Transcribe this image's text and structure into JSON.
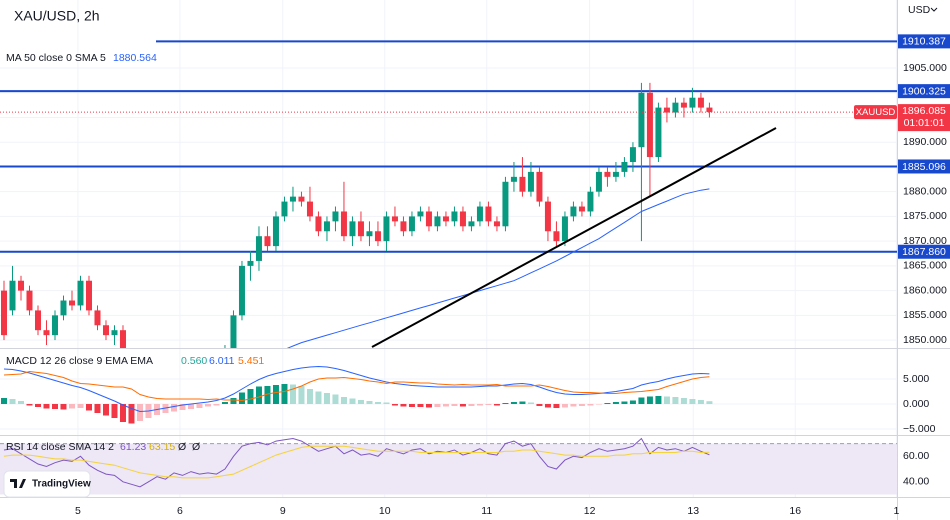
{
  "chart_data": {
    "type": "candlestick",
    "title": "XAU/USD, 2h",
    "currency": "USD",
    "symbol": "XAUUSD",
    "countdown": "01:01:01",
    "categories": [
      null,
      null,
      null,
      null,
      null,
      null,
      null,
      null,
      null,
      null,
      null,
      null,
      null,
      null,
      null,
      null,
      null,
      null,
      null,
      null,
      null,
      null,
      null,
      null,
      null,
      null,
      null,
      null,
      null,
      null,
      null,
      null,
      null,
      null,
      null,
      null,
      null,
      null,
      null,
      null,
      null,
      null,
      null,
      null,
      null,
      null,
      null,
      null,
      null,
      null,
      null,
      null,
      null,
      null,
      null,
      null,
      null,
      null,
      null,
      null,
      null,
      null,
      null,
      null,
      null,
      null,
      null,
      null,
      null,
      null,
      null,
      null,
      null,
      null,
      null,
      null,
      null,
      null,
      null,
      null,
      null,
      null,
      null,
      null
    ],
    "open": [
      1860,
      1856,
      1862,
      1860,
      1856,
      1852,
      1851,
      1855,
      1858,
      1857,
      1862,
      1856,
      1853,
      1851,
      1852,
      1847,
      1843,
      1840,
      1838,
      1840,
      1842,
      1841,
      1844,
      1843,
      1845,
      1844,
      1846,
      1848,
      1855,
      1865,
      1866,
      1871,
      1869,
      1875,
      1878,
      1879,
      1878,
      1875,
      1872,
      1874,
      1876,
      1871,
      1874,
      1871,
      1872,
      1870,
      1875,
      1874,
      1872,
      1875,
      1876,
      1873,
      1875,
      1874,
      1876,
      1873,
      1874,
      1877,
      1874,
      1873,
      1882,
      1883,
      1880,
      1884,
      1878,
      1872,
      1870,
      1875,
      1877,
      1876,
      1880,
      1884,
      1883,
      1884,
      1886,
      1889,
      1900,
      1887,
      1897,
      1896,
      1898,
      1897,
      1899,
      1897
    ],
    "high": [
      1862,
      1865,
      1863,
      1861,
      1857,
      1854,
      1856,
      1859,
      1860,
      1863,
      1863,
      1857,
      1854,
      1853,
      1853,
      1848,
      1845,
      1842,
      1841,
      1843,
      1844,
      1845,
      1846,
      1846,
      1847,
      1847,
      1849,
      1856,
      1866,
      1868,
      1873,
      1873,
      1876,
      1879,
      1881,
      1880,
      1881,
      1876,
      1875,
      1877,
      1882,
      1875,
      1876,
      1874,
      1874,
      1876,
      1877,
      1875,
      1876,
      1877,
      1877,
      1876,
      1876,
      1877,
      1877,
      1875,
      1878,
      1878,
      1875,
      1883,
      1886,
      1887,
      1886,
      1885,
      1879,
      1874,
      1876,
      1878,
      1878,
      1881,
      1885,
      1885,
      1886,
      1887,
      1890,
      1902,
      1902,
      1898,
      1899,
      1899,
      1899,
      1901,
      1900,
      1898
    ],
    "low": [
      1850,
      1855,
      1858,
      1855,
      1851,
      1849,
      1850,
      1854,
      1856,
      1856,
      1855,
      1852,
      1850,
      1849,
      1846,
      1842,
      1838,
      1836,
      1837,
      1839,
      1840,
      1840,
      1842,
      1842,
      1843,
      1843,
      1845,
      1847,
      1854,
      1862,
      1864,
      1868,
      1868,
      1874,
      1876,
      1877,
      1874,
      1871,
      1870,
      1872,
      1870,
      1869,
      1870,
      1869,
      1869,
      1868,
      1873,
      1871,
      1871,
      1874,
      1872,
      1872,
      1873,
      1873,
      1872,
      1872,
      1873,
      1873,
      1872,
      1872,
      1880,
      1879,
      1879,
      1877,
      1870,
      1869,
      1869,
      1874,
      1875,
      1875,
      1879,
      1881,
      1882,
      1883,
      1884,
      1870,
      1879,
      1886,
      1894,
      1895,
      1895,
      1896,
      1896,
      1895
    ],
    "close": [
      1851,
      1862,
      1860,
      1856,
      1852,
      1851,
      1855,
      1858,
      1857,
      1862,
      1856,
      1853,
      1851,
      1852,
      1847,
      1843,
      1840,
      1838,
      1840,
      1842,
      1841,
      1844,
      1843,
      1845,
      1844,
      1846,
      1848,
      1855,
      1865,
      1866,
      1871,
      1869,
      1875,
      1878,
      1879,
      1878,
      1875,
      1872,
      1874,
      1876,
      1871,
      1874,
      1871,
      1872,
      1870,
      1875,
      1874,
      1872,
      1875,
      1876,
      1873,
      1875,
      1874,
      1876,
      1873,
      1874,
      1877,
      1874,
      1873,
      1882,
      1883,
      1880,
      1884,
      1878,
      1872,
      1870,
      1875,
      1877,
      1876,
      1880,
      1884,
      1883,
      1884,
      1886,
      1889,
      1900,
      1887,
      1897,
      1896,
      1898,
      1897,
      1899,
      1897,
      1896.085
    ],
    "up_color": "#089981",
    "down_color": "#f23645",
    "ma": {
      "name": "MA 50 close 0 SMA 5",
      "color": "#2962ff",
      "values": [
        null,
        null,
        null,
        null,
        null,
        null,
        null,
        null,
        null,
        null,
        null,
        null,
        null,
        null,
        null,
        null,
        null,
        null,
        null,
        null,
        null,
        null,
        null,
        null,
        null,
        null,
        null,
        null,
        null,
        null,
        1846,
        1846.7,
        1847.4,
        1848.1,
        1848.8,
        1849.5,
        1850,
        1850.5,
        1851,
        1851.5,
        1852,
        1852.5,
        1853,
        1853.5,
        1854,
        1854.5,
        1855,
        1855.5,
        1856,
        1856.5,
        1857,
        1857.5,
        1858,
        1858.5,
        1859,
        1859.5,
        1860,
        1860.5,
        1861,
        1861.5,
        1862,
        1862.8,
        1863.6,
        1864.4,
        1865.2,
        1866,
        1866.9,
        1867.8,
        1868.7,
        1869.6,
        1870.5,
        1871.6,
        1872.7,
        1873.8,
        1874.9,
        1876,
        1876.7,
        1877.4,
        1878.1,
        1878.8,
        1879.5,
        1879.9,
        1880.3,
        1880.564
      ]
    },
    "levels": [
      1910.387,
      1900.325,
      1885.096,
      {
        "value": 1867.86,
        "label": "1867.860"
      }
    ],
    "level_color": "#1848cc",
    "xlim": [
      -0.47,
      105.07
    ],
    "xticks": [
      {
        "value": 8.7,
        "label": "5"
      },
      {
        "value": 20.7,
        "label": "6"
      },
      {
        "value": 32.8,
        "label": "9"
      },
      {
        "value": 44.8,
        "label": "10"
      },
      {
        "value": 56.8,
        "label": "11"
      },
      {
        "value": 68.9,
        "label": "12"
      },
      {
        "value": 81.1,
        "label": "13"
      },
      {
        "value": 93.1,
        "label": "16"
      },
      {
        "value": 105,
        "label": "1"
      }
    ],
    "ylim": [
      1848.4,
      1918.75
    ],
    "yticks": [
      {
        "value": 1850,
        "label": "1850.000"
      },
      {
        "value": 1855,
        "label": "1855.000"
      },
      {
        "value": 1860,
        "label": "1860.000"
      },
      {
        "value": 1865,
        "label": "1865.000"
      },
      {
        "value": 1870,
        "label": "1870.000"
      },
      {
        "value": 1875,
        "label": "1875.000"
      },
      {
        "value": 1880,
        "label": "1880.000"
      },
      {
        "value": 1885,
        "label": "1885.000"
      },
      {
        "value": 1890,
        "label": "1890.000"
      },
      {
        "value": 1895,
        "label": "1895.000"
      },
      {
        "value": 1900,
        "label": "1900.000"
      },
      {
        "value": 1905,
        "label": "1905.000"
      }
    ],
    "grid": true,
    "macd": {
      "legend": "MACD 12 26 close 9 EMA EMA",
      "legend_values": [
        "0.560",
        "6.011",
        "5.451"
      ],
      "ylim": [
        -6,
        11
      ],
      "yticks": [
        {
          "value": 5,
          "label": "5.000"
        },
        {
          "value": 0,
          "label": "0.000"
        },
        {
          "value": -5,
          "label": "−5.000"
        }
      ],
      "hist_colors": [
        "#089981",
        "#acdcd4",
        "#f23645",
        "#fbb8be"
      ],
      "hist": [
        1.2,
        1.0,
        0.6,
        -0.3,
        -0.6,
        -0.9,
        -1.0,
        -1.1,
        -0.9,
        -0.8,
        -1.3,
        -1.8,
        -2.3,
        -2.8,
        -3.6,
        -3.9,
        -3.4,
        -2.8,
        -2.2,
        -1.8,
        -1.5,
        -1.2,
        -1.0,
        -0.8,
        -0.5,
        -0.3,
        0.4,
        1.2,
        2.3,
        3.0,
        3.5,
        3.6,
        3.8,
        4.0,
        3.9,
        3.6,
        3.0,
        2.5,
        2.2,
        1.9,
        1.4,
        1.1,
        0.8,
        0.6,
        0.4,
        0.3,
        -0.3,
        -0.5,
        -0.6,
        -0.6,
        -0.7,
        -0.6,
        -0.5,
        -0.4,
        -0.5,
        -0.4,
        -0.3,
        -0.2,
        -0.3,
        0.2,
        0.4,
        0.5,
        0.3,
        -0.4,
        -0.7,
        -0.8,
        -0.7,
        -0.5,
        -0.4,
        -0.3,
        -0.1,
        0.2,
        0.4,
        0.5,
        0.7,
        1.3,
        1.5,
        1.6,
        1.5,
        1.4,
        1.2,
        1.0,
        0.8,
        0.56
      ],
      "series": [
        {
          "name": "MACD",
          "color": "#2962ff",
          "values": [
            7.0,
            6.9,
            6.6,
            6.2,
            5.7,
            5.2,
            4.7,
            4.2,
            3.7,
            3.3,
            2.7,
            2.0,
            1.3,
            0.6,
            -0.2,
            -0.9,
            -1.5,
            -1.4,
            -1.1,
            -0.8,
            -0.5,
            -0.2,
            0.0,
            0.2,
            0.4,
            0.7,
            1.2,
            2.0,
            3.0,
            4.0,
            4.9,
            5.6,
            6.1,
            6.5,
            6.9,
            7.2,
            7.4,
            7.5,
            7.4,
            7.1,
            6.7,
            6.2,
            5.7,
            5.2,
            4.8,
            4.4,
            4.1,
            3.9,
            3.7,
            3.6,
            3.5,
            3.4,
            3.4,
            3.4,
            3.4,
            3.4,
            3.5,
            3.6,
            3.6,
            3.8,
            4.0,
            4.1,
            3.9,
            3.4,
            2.8,
            2.3,
            2.0,
            1.9,
            1.9,
            2.0,
            2.1,
            2.3,
            2.5,
            2.8,
            3.1,
            3.8,
            4.2,
            4.5,
            5.0,
            5.4,
            5.7,
            6.0,
            6.1,
            6.011
          ]
        },
        {
          "name": "Signal",
          "color": "#ff6d00",
          "values": [
            5.8,
            5.9,
            6.0,
            6.5,
            6.3,
            6.1,
            5.7,
            5.3,
            4.6,
            4.1,
            4.0,
            3.8,
            3.6,
            3.4,
            3.4,
            3.0,
            1.9,
            1.4,
            1.1,
            1.0,
            1.0,
            1.0,
            1.0,
            1.0,
            0.9,
            1.0,
            0.8,
            0.8,
            0.7,
            1.0,
            1.4,
            2.0,
            2.3,
            2.5,
            3.0,
            3.6,
            4.4,
            5.0,
            5.2,
            5.2,
            5.3,
            5.1,
            4.9,
            4.6,
            4.4,
            4.1,
            4.4,
            4.4,
            4.3,
            4.2,
            4.2,
            4.0,
            3.9,
            3.8,
            3.9,
            3.8,
            3.8,
            3.8,
            3.9,
            3.6,
            3.6,
            3.6,
            3.6,
            3.8,
            3.5,
            3.1,
            2.7,
            2.4,
            2.3,
            2.3,
            2.2,
            2.1,
            2.1,
            2.3,
            2.4,
            2.5,
            2.7,
            2.9,
            3.5,
            4.0,
            4.5,
            5.0,
            5.3,
            5.451
          ]
        }
      ]
    },
    "rsi": {
      "legend": "RSI 14 close SMA 14 2",
      "legend_values": [
        "61.23",
        "63.15",
        "Ø",
        "Ø"
      ],
      "ylim": [
        28,
        76
      ],
      "yticks": [
        {
          "value": 60,
          "label": "60.00"
        },
        {
          "value": 40,
          "label": "40.00"
        }
      ],
      "band": [
        30,
        70
      ],
      "band_color": "#ede7f6",
      "series": [
        {
          "name": "RSI",
          "color": "#7e57c2",
          "values": [
            65,
            66,
            62,
            58,
            54,
            52,
            55,
            57,
            56,
            60,
            53,
            49,
            46,
            45,
            40,
            38,
            36,
            40,
            44,
            42,
            47,
            45,
            48,
            46,
            47,
            46,
            50,
            60,
            68,
            70,
            71,
            69,
            72,
            73,
            74,
            72,
            68,
            64,
            66,
            68,
            62,
            65,
            61,
            62,
            60,
            66,
            64,
            62,
            65,
            66,
            62,
            64,
            63,
            65,
            61,
            63,
            66,
            62,
            61,
            70,
            72,
            68,
            70,
            60,
            52,
            50,
            57,
            60,
            59,
            63,
            66,
            64,
            65,
            66,
            68,
            74,
            62,
            67,
            65,
            66,
            64,
            67,
            64,
            61.23
          ]
        },
        {
          "name": "SMA",
          "color": "#f5d33a",
          "values": [
            60,
            61,
            61,
            61,
            60,
            59,
            58,
            58,
            57,
            57,
            56,
            55,
            54,
            53,
            51,
            49,
            47,
            46,
            45,
            44,
            44,
            43,
            43,
            43,
            43,
            44,
            45,
            46,
            49,
            52,
            55,
            58,
            61,
            63,
            65,
            67,
            68,
            68,
            68,
            68,
            68,
            67,
            66,
            65,
            64,
            64,
            64,
            64,
            64,
            63,
            63,
            63,
            63,
            63,
            63,
            63,
            63,
            63,
            63,
            64,
            64,
            65,
            65,
            64,
            63,
            62,
            61,
            61,
            60,
            60,
            60,
            60,
            61,
            61,
            62,
            62,
            63,
            63,
            63,
            63,
            64,
            64,
            63,
            63.15
          ]
        }
      ]
    },
    "brand": "TradingView"
  }
}
